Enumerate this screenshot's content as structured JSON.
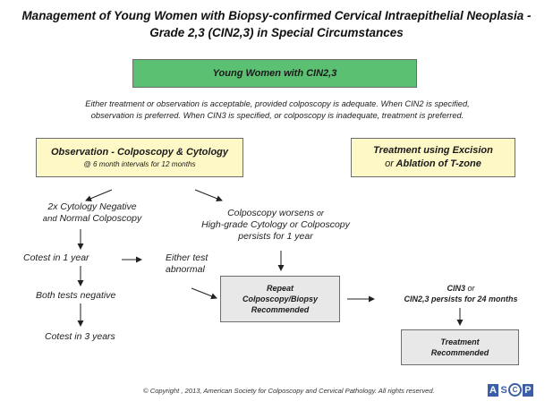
{
  "title": {
    "line1": "Management of Young Women with Biopsy-confirmed Cervical Intraepithelial Neoplasia -",
    "line2": "Grade 2,3 (CIN2,3) in Special Circumstances"
  },
  "top_box": "Young Women with CIN2,3",
  "note": {
    "line1": "Either treatment or observation is acceptable, provided colposcopy is adequate.  When CIN2 is specified,",
    "line2": "observation is preferred.  When CIN3 is specified, or colposcopy is inadequate, treatment is preferred."
  },
  "observation_box": {
    "line1": "Observation - Colposcopy & Cytology",
    "line2": "@ 6 month intervals for 12 months"
  },
  "treatment_box": {
    "line1": "Treatment using Excision",
    "line2_connector": "or",
    "line2_rest": "Ablation of T-zone"
  },
  "branch_left": {
    "line1": "2x Cytology Negative",
    "line2_connector": "and",
    "line2_rest": "Normal Colposcopy"
  },
  "branch_right": {
    "line1_main": "Colposcopy worsens",
    "line1_connector": "or",
    "line2": "High-grade Cytology or Colposcopy",
    "line3": "persists for 1 year"
  },
  "cotest_1yr": "Cotest in 1 year",
  "either_abnormal": {
    "line1": "Either test",
    "line2": "abnormal"
  },
  "both_negative": "Both tests negative",
  "cotest_3yr": "Cotest in 3 years",
  "repeat_box": {
    "line1": "Repeat",
    "line2": "Colposcopy/Biopsy",
    "line3": "Recommended"
  },
  "cin3_text": {
    "line1_main": "CIN3",
    "line1_connector": "or",
    "line2": "CIN2,3 persists for 24 months"
  },
  "treatment_rec_box": {
    "line1": "Treatment",
    "line2": "Recommended"
  },
  "copyright": "© Copyright , 2013, American Society for Colposcopy and Cervical Pathology.  All rights reserved.",
  "logo": {
    "a": "A",
    "s": "S",
    "c": "C",
    "p": "P"
  },
  "colors": {
    "green": "#5cc072",
    "yellow": "#fdf8c6",
    "gray": "#e8e8e8",
    "logo_blue": "#3c5ea8"
  }
}
